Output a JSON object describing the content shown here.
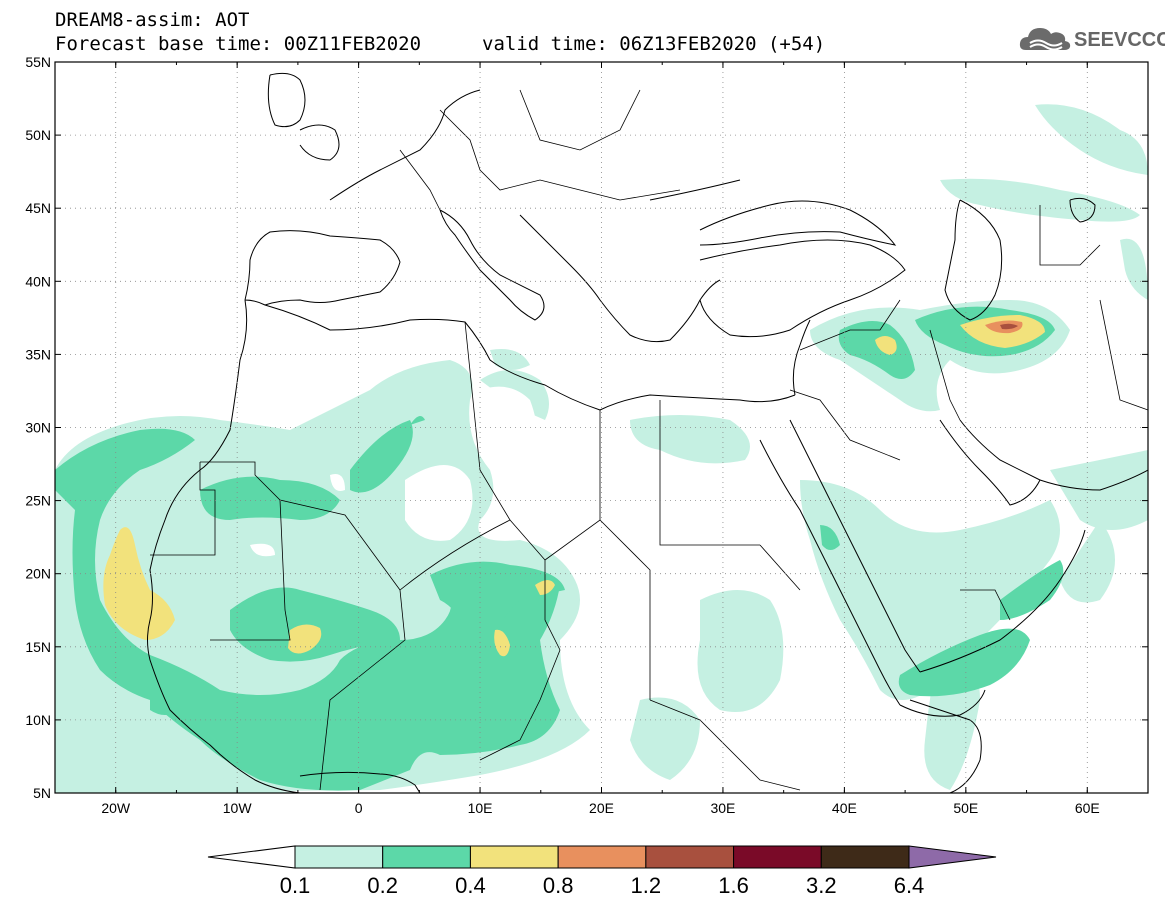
{
  "title": {
    "line1": "DREAM8-assim: AOT",
    "line2": "Forecast base time: 00Z11FEB2020",
    "valid": "valid time: 06Z13FEB2020 (+54)"
  },
  "logo": {
    "text": "SEEVCCC",
    "icon": "cloud-icon"
  },
  "map": {
    "lat_labels": [
      "55N",
      "50N",
      "45N",
      "40N",
      "35N",
      "30N",
      "25N",
      "20N",
      "15N",
      "10N",
      "5N"
    ],
    "lat_values": [
      55,
      50,
      45,
      40,
      35,
      30,
      25,
      20,
      15,
      10,
      5
    ],
    "lon_labels": [
      "20W",
      "10W",
      "0",
      "10E",
      "20E",
      "30E",
      "40E",
      "50E",
      "60E"
    ],
    "lon_values": [
      -20,
      -10,
      0,
      10,
      20,
      30,
      40,
      50,
      60
    ],
    "extent": {
      "lon_min": -25,
      "lon_max": 65,
      "lat_min": 5,
      "lat_max": 55
    }
  },
  "colorbar": {
    "labels": [
      "0.1",
      "0.2",
      "0.4",
      "0.8",
      "1.2",
      "1.6",
      "3.2",
      "6.4"
    ],
    "colors": [
      "#ffffff",
      "#c5f0e2",
      "#5cd8a8",
      "#f2e27c",
      "#e8905e",
      "#a8503e",
      "#7a0a28",
      "#3e2a18",
      "#8e6aa8"
    ]
  }
}
